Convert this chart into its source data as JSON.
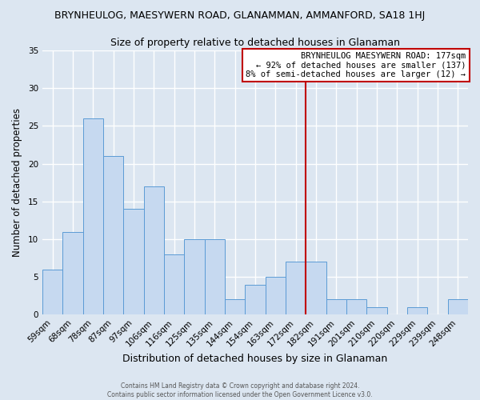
{
  "title": "BRYNHEULOG, MAESYWERN ROAD, GLANAMMAN, AMMANFORD, SA18 1HJ",
  "subtitle": "Size of property relative to detached houses in Glanaman",
  "xlabel": "Distribution of detached houses by size in Glanaman",
  "ylabel": "Number of detached properties",
  "bar_labels": [
    "59sqm",
    "68sqm",
    "78sqm",
    "87sqm",
    "97sqm",
    "106sqm",
    "116sqm",
    "125sqm",
    "135sqm",
    "144sqm",
    "154sqm",
    "163sqm",
    "172sqm",
    "182sqm",
    "191sqm",
    "201sqm",
    "210sqm",
    "220sqm",
    "229sqm",
    "239sqm",
    "248sqm"
  ],
  "bar_values": [
    6,
    11,
    26,
    21,
    14,
    17,
    8,
    10,
    10,
    2,
    4,
    5,
    7,
    7,
    2,
    2,
    1,
    0,
    1,
    0,
    2
  ],
  "bar_color": "#c6d9f0",
  "bar_edge_color": "#5b9bd5",
  "background_color": "#dce6f1",
  "grid_color": "#b8cde0",
  "ylim": [
    0,
    35
  ],
  "yticks": [
    0,
    5,
    10,
    15,
    20,
    25,
    30,
    35
  ],
  "vline_color": "#c00000",
  "annotation_title": "BRYNHEULOG MAESYWERN ROAD: 177sqm",
  "annotation_line1": "← 92% of detached houses are smaller (137)",
  "annotation_line2": "8% of semi-detached houses are larger (12) →",
  "annotation_box_color": "#ffffff",
  "annotation_box_edge": "#c00000",
  "footer_line1": "Contains HM Land Registry data © Crown copyright and database right 2024.",
  "footer_line2": "Contains public sector information licensed under the Open Government Licence v3.0.",
  "title_fontsize": 9,
  "subtitle_fontsize": 9,
  "xlabel_fontsize": 9,
  "ylabel_fontsize": 8.5,
  "annot_fontsize": 7.5,
  "tick_fontsize": 7.5
}
